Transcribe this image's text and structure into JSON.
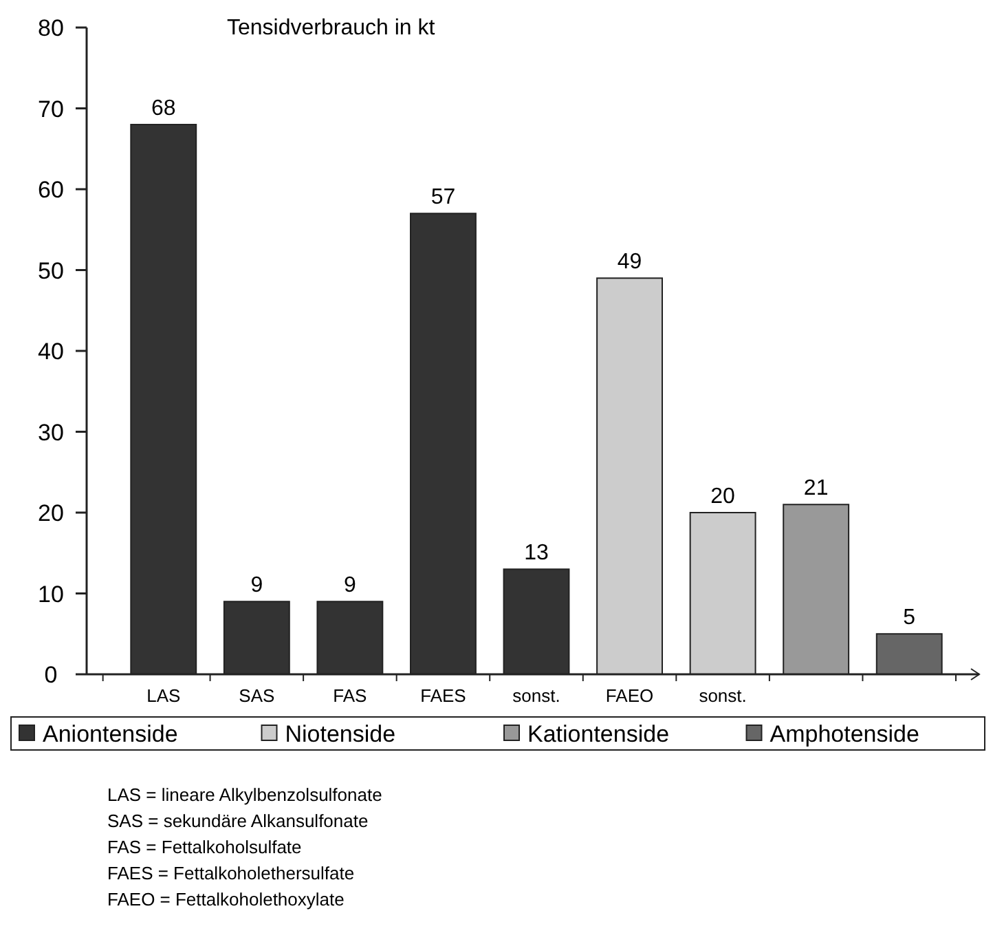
{
  "chart_data": {
    "type": "bar",
    "title": "Tensidverbrauch in kt",
    "categories": [
      "LAS",
      "SAS",
      "FAS",
      "FAES",
      "sonst.",
      "FAEO",
      "sonst.",
      null,
      null
    ],
    "series": [
      {
        "name": "Aniontenside",
        "color": "#333333",
        "values": [
          68,
          9,
          9,
          57,
          13,
          null,
          null,
          null,
          null
        ]
      },
      {
        "name": "Niotenside",
        "color": "#cccccc",
        "values": [
          null,
          null,
          null,
          null,
          null,
          49,
          20,
          null,
          null
        ]
      },
      {
        "name": "Kationtenside",
        "color": "#999999",
        "values": [
          null,
          null,
          null,
          null,
          null,
          null,
          null,
          21,
          null
        ]
      },
      {
        "name": "Amphotenside",
        "color": "#666666",
        "values": [
          null,
          null,
          null,
          null,
          null,
          null,
          null,
          null,
          5
        ]
      }
    ],
    "ylim": [
      0,
      80
    ],
    "yticks": [
      0,
      10,
      20,
      30,
      40,
      50,
      60,
      70,
      80
    ],
    "grid": false,
    "legend": "bottom",
    "data_labels": true,
    "annotations": [
      "LAS = lineare Alkylbenzolsulfonate",
      "SAS = sekundäre Alkansulfonate",
      "FAS = Fettalkoholsulfate",
      "FAES = Fettalkoholethersulfate",
      "FAEO = Fettalkoholethoxylate"
    ]
  }
}
